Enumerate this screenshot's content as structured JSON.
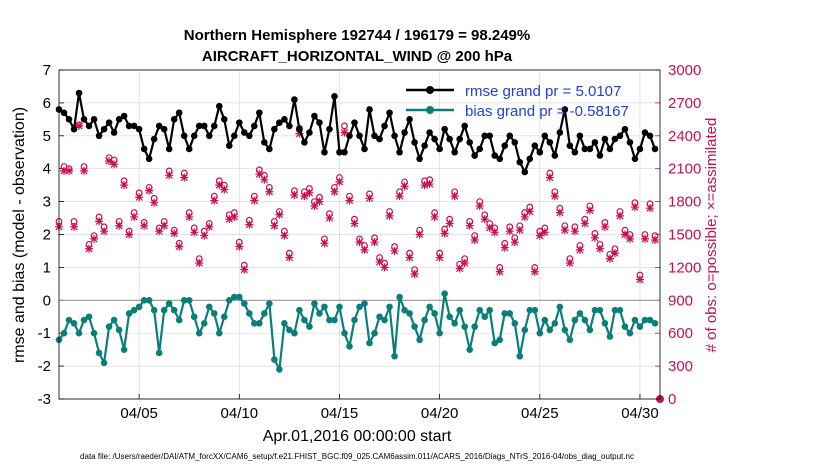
{
  "colors": {
    "rmse": "#000000",
    "bias": "#0a7f7a",
    "obs": "#c80f4f",
    "legend_text": "#1f3fd6",
    "grid": "#d9d9d9",
    "zero": "#999999"
  },
  "chart_data": {
    "type": "line",
    "title_line1": "Northern Hemisphere 192744 / 196179 = 98.249%",
    "title_line2": "AIRCRAFT_HORIZONTAL_WIND @ 200 hPa",
    "xlabel": "Apr.01,2016 00:00:00 start",
    "ylabel": "rmse and bias (model - observation)",
    "y2label": "# of obs: o=possible; ×=assimilated",
    "xlim": [
      1,
      31
    ],
    "ylim": [
      -3,
      7
    ],
    "y2lim": [
      0,
      3000
    ],
    "xticks": [
      5,
      10,
      15,
      20,
      25,
      30
    ],
    "xtick_labels": [
      "04/05",
      "04/10",
      "04/15",
      "04/20",
      "04/25",
      "04/30"
    ],
    "yticks": [
      -3,
      -2,
      -1,
      0,
      1,
      2,
      3,
      4,
      5,
      6,
      7
    ],
    "y2ticks": [
      0,
      300,
      600,
      900,
      1200,
      1500,
      1800,
      2100,
      2400,
      2700,
      3000
    ],
    "footnote": "data file: /Users/raeder/DAI/ATM_forcXX/CAM6_setup/f.e21.FHIST_BGC.f09_025.CAM6assim.011/ACARS_2016/Diags_NTrS_2016-04/obs_diag_output.nc",
    "series": [
      {
        "name": "rmse grand pr = 5.0107",
        "x": [
          1.0,
          1.25,
          1.5,
          1.75,
          2.0,
          2.25,
          2.5,
          2.75,
          3.0,
          3.25,
          3.5,
          3.75,
          4.0,
          4.25,
          4.5,
          4.75,
          5.0,
          5.25,
          5.5,
          5.75,
          6.0,
          6.25,
          6.5,
          6.75,
          7.0,
          7.25,
          7.5,
          7.75,
          8.0,
          8.25,
          8.5,
          8.75,
          9.0,
          9.25,
          9.5,
          9.75,
          10.0,
          10.25,
          10.5,
          10.75,
          11.0,
          11.25,
          11.5,
          11.75,
          12.0,
          12.25,
          12.5,
          12.75,
          13.0,
          13.25,
          13.5,
          13.75,
          14.0,
          14.25,
          14.5,
          14.75,
          15.0,
          15.25,
          15.5,
          15.75,
          16.0,
          16.25,
          16.5,
          16.75,
          17.0,
          17.25,
          17.5,
          17.75,
          18.0,
          18.25,
          18.5,
          18.75,
          19.0,
          19.25,
          19.5,
          19.75,
          20.0,
          20.25,
          20.5,
          20.75,
          21.0,
          21.25,
          21.5,
          21.75,
          22.0,
          22.25,
          22.5,
          22.75,
          23.0,
          23.25,
          23.5,
          23.75,
          24.0,
          24.25,
          24.5,
          24.75,
          25.0,
          25.25,
          25.5,
          25.75,
          26.0,
          26.25,
          26.5,
          26.75,
          27.0,
          27.25,
          27.5,
          27.75,
          28.0,
          28.25,
          28.5,
          28.75,
          29.0,
          29.25,
          29.5,
          29.75,
          30.0,
          30.25,
          30.5,
          30.75
        ],
        "values": [
          5.8,
          5.7,
          5.5,
          5.2,
          6.3,
          5.5,
          5.3,
          5.5,
          5.0,
          5.2,
          5.4,
          5.1,
          5.5,
          5.6,
          5.3,
          5.3,
          5.2,
          4.6,
          4.3,
          4.9,
          5.3,
          5.2,
          4.6,
          5.5,
          5.7,
          5.0,
          4.6,
          5.0,
          5.3,
          5.3,
          5.0,
          5.3,
          5.9,
          5.5,
          4.7,
          5.0,
          5.4,
          5.1,
          5.0,
          5.3,
          5.7,
          4.8,
          4.6,
          5.2,
          5.4,
          5.5,
          5.3,
          6.1,
          5.2,
          4.8,
          5.1,
          5.6,
          5.4,
          4.5,
          5.2,
          6.2,
          4.5,
          4.5,
          5.0,
          5.4,
          5.0,
          4.6,
          5.8,
          5.0,
          4.9,
          5.3,
          5.7,
          5.0,
          4.5,
          5.1,
          5.5,
          4.8,
          4.3,
          4.7,
          5.1,
          4.9,
          4.6,
          5.2,
          4.9,
          4.5,
          4.9,
          5.3,
          4.8,
          4.4,
          4.6,
          5.0,
          5.0,
          4.4,
          4.3,
          4.7,
          5.0,
          4.8,
          4.2,
          3.9,
          4.3,
          4.7,
          4.5,
          5.0,
          4.8,
          4.4,
          5.1,
          5.8,
          4.7,
          4.5,
          5.0,
          4.6,
          4.6,
          4.8,
          4.4,
          4.9,
          4.6,
          4.9,
          5.0,
          5.2,
          4.8,
          4.3,
          4.6,
          5.1,
          5.0,
          4.6
        ]
      },
      {
        "name": "bias grand pr = -0.58167",
        "x": [
          1.0,
          1.25,
          1.5,
          1.75,
          2.0,
          2.25,
          2.5,
          2.75,
          3.0,
          3.25,
          3.5,
          3.75,
          4.0,
          4.25,
          4.5,
          4.75,
          5.0,
          5.25,
          5.5,
          5.75,
          6.0,
          6.25,
          6.5,
          6.75,
          7.0,
          7.25,
          7.5,
          7.75,
          8.0,
          8.25,
          8.5,
          8.75,
          9.0,
          9.25,
          9.5,
          9.75,
          10.0,
          10.25,
          10.5,
          10.75,
          11.0,
          11.25,
          11.5,
          11.75,
          12.0,
          12.25,
          12.5,
          12.75,
          13.0,
          13.25,
          13.5,
          13.75,
          14.0,
          14.25,
          14.5,
          14.75,
          15.0,
          15.25,
          15.5,
          15.75,
          16.0,
          16.25,
          16.5,
          16.75,
          17.0,
          17.25,
          17.5,
          17.75,
          18.0,
          18.25,
          18.5,
          18.75,
          19.0,
          19.25,
          19.5,
          19.75,
          20.0,
          20.25,
          20.5,
          20.75,
          21.0,
          21.25,
          21.5,
          21.75,
          22.0,
          22.25,
          22.5,
          22.75,
          23.0,
          23.25,
          23.5,
          23.75,
          24.0,
          24.25,
          24.5,
          24.75,
          25.0,
          25.25,
          25.5,
          25.75,
          26.0,
          26.25,
          26.5,
          26.75,
          27.0,
          27.25,
          27.5,
          27.75,
          28.0,
          28.25,
          28.5,
          28.75,
          29.0,
          29.25,
          29.5,
          29.75,
          30.0,
          30.25,
          30.5,
          30.75
        ],
        "values": [
          -1.2,
          -1.0,
          -0.6,
          -0.7,
          -1.0,
          -0.6,
          -0.5,
          -1.0,
          -1.6,
          -1.9,
          -0.8,
          -0.6,
          -0.9,
          -1.5,
          -0.4,
          -0.3,
          -0.2,
          0.0,
          0.0,
          -0.3,
          -1.6,
          -0.3,
          -0.1,
          -0.3,
          -0.6,
          0.0,
          0.0,
          -0.5,
          -1.0,
          -0.7,
          -0.2,
          -0.4,
          -1.0,
          -0.5,
          0.0,
          0.1,
          0.1,
          -0.1,
          -0.4,
          -0.7,
          -0.7,
          -0.4,
          -0.1,
          -1.8,
          -2.1,
          -0.7,
          -0.9,
          -1.0,
          -0.3,
          -0.6,
          -0.8,
          -0.1,
          -0.4,
          -0.2,
          -0.6,
          -0.6,
          -0.2,
          -1.0,
          -1.4,
          -0.6,
          -0.2,
          -0.1,
          -1.3,
          -1.0,
          -0.5,
          -0.6,
          -0.2,
          -1.7,
          0.1,
          -0.3,
          -0.4,
          -0.8,
          -1.2,
          -0.6,
          -0.2,
          -0.4,
          -1.0,
          0.2,
          -0.5,
          -0.7,
          -0.3,
          -0.8,
          -1.5,
          -0.8,
          -0.3,
          -0.5,
          -0.3,
          -1.3,
          -1.2,
          -0.4,
          -0.4,
          -0.7,
          -1.7,
          -0.9,
          -0.3,
          -0.3,
          -1.0,
          -0.6,
          -0.9,
          -0.7,
          -0.2,
          -0.9,
          -1.2,
          -0.6,
          -0.4,
          -0.6,
          -0.9,
          -0.3,
          -0.3,
          -0.7,
          -1.1,
          -0.3,
          -0.3,
          -0.8,
          -1.0,
          -0.6,
          -0.8,
          -0.6,
          -0.6,
          -0.7
        ]
      },
      {
        "name": "obs possible",
        "marker": "o",
        "x": [
          1.0,
          1.25,
          1.5,
          1.75,
          2.0,
          2.25,
          2.5,
          2.75,
          3.0,
          3.25,
          3.5,
          3.75,
          4.0,
          4.25,
          4.5,
          4.75,
          5.0,
          5.25,
          5.5,
          5.75,
          6.0,
          6.25,
          6.5,
          6.75,
          7.0,
          7.25,
          7.5,
          7.75,
          8.0,
          8.25,
          8.5,
          8.75,
          9.0,
          9.25,
          9.5,
          9.75,
          10.0,
          10.25,
          10.5,
          10.75,
          11.0,
          11.25,
          11.5,
          11.75,
          12.0,
          12.25,
          12.5,
          12.75,
          13.0,
          13.25,
          13.5,
          13.75,
          14.0,
          14.25,
          14.5,
          14.75,
          15.0,
          15.25,
          15.5,
          15.75,
          16.0,
          16.25,
          16.5,
          16.75,
          17.0,
          17.25,
          17.5,
          17.75,
          18.0,
          18.25,
          18.5,
          18.75,
          19.0,
          19.25,
          19.5,
          19.75,
          20.0,
          20.25,
          20.5,
          20.75,
          21.0,
          21.25,
          21.5,
          21.75,
          22.0,
          22.25,
          22.5,
          22.75,
          23.0,
          23.25,
          23.5,
          23.75,
          24.0,
          24.25,
          24.5,
          24.75,
          25.0,
          25.25,
          25.5,
          25.75,
          26.0,
          26.25,
          26.5,
          26.75,
          27.0,
          27.25,
          27.5,
          27.75,
          28.0,
          28.25,
          28.5,
          28.75,
          29.0,
          29.25,
          29.5,
          29.75,
          30.0,
          30.25,
          30.5,
          30.75
        ],
        "values": [
          1620,
          2120,
          2100,
          1620,
          2500,
          2120,
          1410,
          1490,
          1660,
          1570,
          2200,
          2180,
          1620,
          1990,
          1530,
          1700,
          1880,
          1610,
          1930,
          1830,
          1560,
          1620,
          2080,
          1540,
          1420,
          2060,
          1700,
          1560,
          1280,
          1530,
          1600,
          1850,
          1990,
          1950,
          1680,
          1700,
          1430,
          1220,
          1630,
          1850,
          2090,
          2040,
          1930,
          1620,
          1710,
          1530,
          1330,
          1900,
          2470,
          1890,
          1920,
          1800,
          1840,
          1460,
          1690,
          1930,
          2020,
          2490,
          1850,
          1640,
          1460,
          1400,
          1870,
          1470,
          1290,
          1240,
          1710,
          1390,
          1890,
          1980,
          1330,
          1180,
          1540,
          1990,
          2000,
          1700,
          1330,
          1550,
          1640,
          1890,
          1230,
          1280,
          1620,
          1490,
          1800,
          1680,
          1600,
          1560,
          1200,
          1420,
          1570,
          1470,
          1580,
          1700,
          1750,
          1200,
          1530,
          1560,
          2060,
          1890,
          1740,
          1580,
          1280,
          1570,
          1400,
          1640,
          1760,
          1510,
          1410,
          1610,
          1320,
          1370,
          1710,
          1540,
          1500,
          1790,
          1130,
          1500,
          1780,
          1490
        ]
      },
      {
        "name": "obs assimilated",
        "marker": "x",
        "x": [
          1.0,
          1.25,
          1.5,
          1.75,
          2.0,
          2.25,
          2.5,
          2.75,
          3.0,
          3.25,
          3.5,
          3.75,
          4.0,
          4.25,
          4.5,
          4.75,
          5.0,
          5.25,
          5.5,
          5.75,
          6.0,
          6.25,
          6.5,
          6.75,
          7.0,
          7.25,
          7.5,
          7.75,
          8.0,
          8.25,
          8.5,
          8.75,
          9.0,
          9.25,
          9.5,
          9.75,
          10.0,
          10.25,
          10.5,
          10.75,
          11.0,
          11.25,
          11.5,
          11.75,
          12.0,
          12.25,
          12.5,
          12.75,
          13.0,
          13.25,
          13.5,
          13.75,
          14.0,
          14.25,
          14.5,
          14.75,
          15.0,
          15.25,
          15.5,
          15.75,
          16.0,
          16.25,
          16.5,
          16.75,
          17.0,
          17.25,
          17.5,
          17.75,
          18.0,
          18.25,
          18.5,
          18.75,
          19.0,
          19.25,
          19.5,
          19.75,
          20.0,
          20.25,
          20.5,
          20.75,
          21.0,
          21.25,
          21.5,
          21.75,
          22.0,
          22.25,
          22.5,
          22.75,
          23.0,
          23.25,
          23.5,
          23.75,
          24.0,
          24.25,
          24.5,
          24.75,
          25.0,
          25.25,
          25.5,
          25.75,
          26.0,
          26.25,
          26.5,
          26.75,
          27.0,
          27.25,
          27.5,
          27.75,
          28.0,
          28.25,
          28.5,
          28.75,
          29.0,
          29.25,
          29.5,
          29.75,
          30.0,
          30.25,
          30.5,
          30.75
        ],
        "values": [
          1570,
          2080,
          2080,
          1570,
          2490,
          2080,
          1370,
          1460,
          1620,
          1530,
          2170,
          2140,
          1580,
          1950,
          1500,
          1660,
          1840,
          1580,
          1900,
          1790,
          1530,
          1580,
          2040,
          1510,
          1390,
          2020,
          1660,
          1520,
          1240,
          1490,
          1570,
          1810,
          1950,
          1910,
          1640,
          1660,
          1390,
          1180,
          1590,
          1810,
          2050,
          2000,
          1890,
          1580,
          1680,
          1490,
          1290,
          1860,
          2420,
          1850,
          1880,
          1760,
          1800,
          1420,
          1650,
          1890,
          1980,
          2430,
          1810,
          1600,
          1430,
          1360,
          1830,
          1430,
          1250,
          1200,
          1670,
          1350,
          1850,
          1940,
          1290,
          1140,
          1500,
          1950,
          1960,
          1660,
          1290,
          1510,
          1600,
          1850,
          1190,
          1240,
          1580,
          1450,
          1760,
          1640,
          1560,
          1520,
          1160,
          1380,
          1530,
          1430,
          1540,
          1660,
          1710,
          1160,
          1490,
          1520,
          2020,
          1850,
          1700,
          1540,
          1240,
          1530,
          1360,
          1600,
          1720,
          1470,
          1370,
          1570,
          1280,
          1330,
          1670,
          1500,
          1460,
          1750,
          1090,
          1460,
          1740,
          1450
        ]
      }
    ]
  }
}
